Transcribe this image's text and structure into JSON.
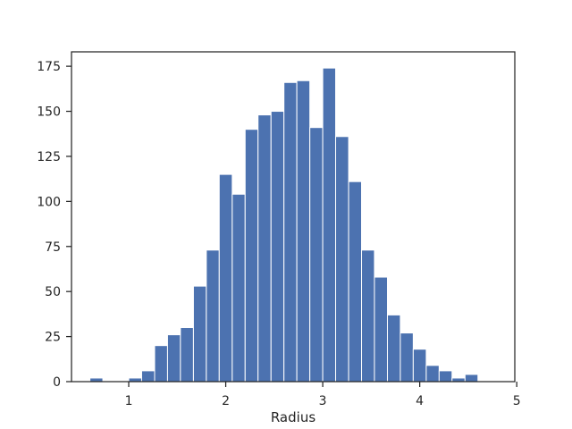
{
  "chart_data": {
    "type": "bar",
    "title": "",
    "xlabel": "Radius",
    "ylabel": "",
    "xlim": [
      0.41,
      4.98
    ],
    "ylim": [
      0,
      183
    ],
    "x_ticks": [
      1,
      2,
      3,
      4,
      5
    ],
    "y_ticks": [
      0,
      25,
      50,
      75,
      100,
      125,
      150,
      175
    ],
    "grid": false,
    "bar_color": "#4c72b0",
    "bin_edges": [
      0.6,
      0.733,
      0.867,
      1.0,
      1.133,
      1.267,
      1.4,
      1.533,
      1.667,
      1.8,
      1.933,
      2.067,
      2.2,
      2.333,
      2.467,
      2.6,
      2.733,
      2.867,
      3.0,
      3.133,
      3.267,
      3.4,
      3.533,
      3.667,
      3.8,
      3.933,
      4.067,
      4.2,
      4.333,
      4.467,
      4.6,
      4.733
    ],
    "counts": [
      2,
      0,
      0,
      2,
      6,
      20,
      26,
      30,
      53,
      73,
      115,
      104,
      140,
      148,
      150,
      166,
      167,
      141,
      174,
      136,
      111,
      73,
      58,
      37,
      27,
      18,
      9,
      6,
      2,
      4,
      0
    ]
  }
}
